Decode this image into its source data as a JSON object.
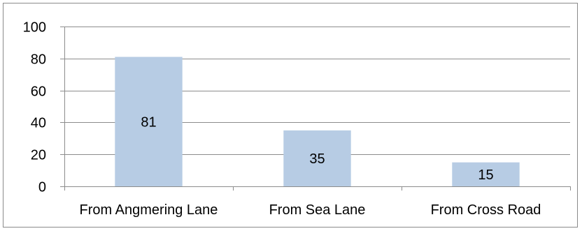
{
  "chart_data": {
    "type": "bar",
    "title": "",
    "xlabel": "",
    "ylabel": "",
    "categories": [
      "From Angmering Lane",
      "From Sea Lane",
      "From Cross Road"
    ],
    "values": [
      81,
      35,
      15
    ],
    "data_labels": [
      "81",
      "35",
      "15"
    ],
    "ylim": [
      0,
      100
    ],
    "yticks": [
      0,
      20,
      40,
      60,
      80,
      100
    ],
    "ytick_labels": [
      "0",
      "20",
      "40",
      "60",
      "80",
      "100"
    ],
    "grid": true,
    "legend": "none",
    "colors": {
      "bar": "#b7cce4",
      "grid": "#8c8c8c",
      "axis": "#8c8c8c"
    }
  }
}
